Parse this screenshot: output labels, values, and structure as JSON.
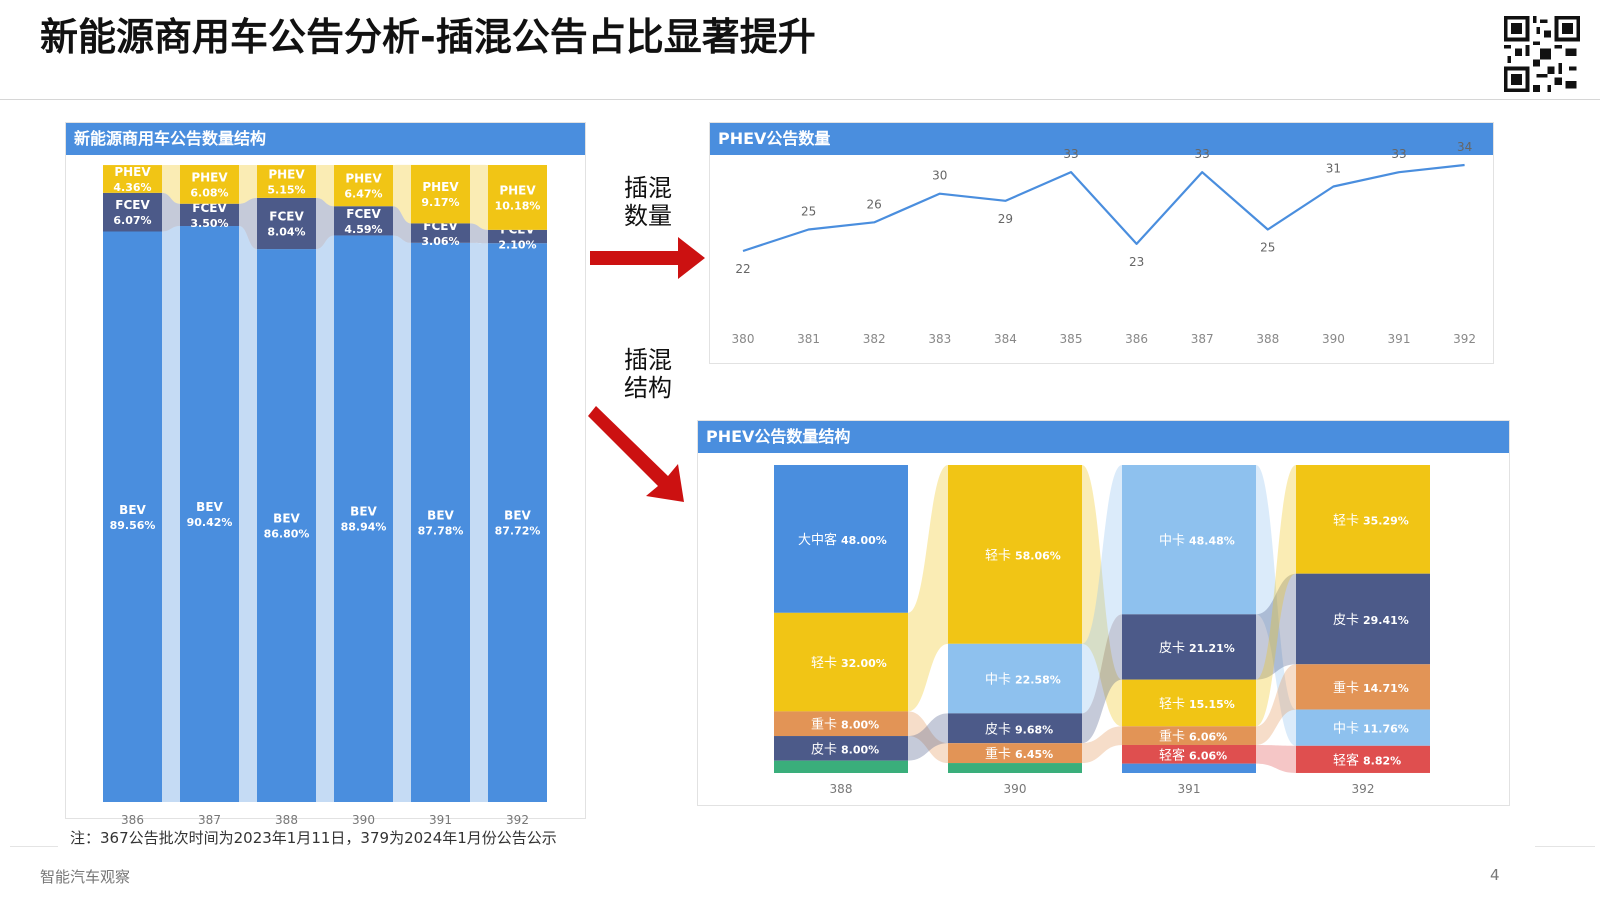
{
  "page": {
    "title": "新能源商用车公告分析-插混公告占比显著提升",
    "note": "注：367公告批次时间为2023年1月11日，379为2024年1月份公告公示",
    "footer": "智能汽车观察",
    "page_number": "4",
    "arrow_label_1": "插混\n数量",
    "arrow_label_2": "插混\n结构"
  },
  "colors": {
    "header_blue": "#4a8ede",
    "bev": "#4a8ede",
    "fcev": "#4c5a89",
    "phev": "#f1c515",
    "light_blue": "#8ec1ee",
    "orange": "#e29456",
    "red": "#df4f4f",
    "green": "#3aae7b",
    "arrow_red": "#cc1111",
    "line": "#4a8ede"
  },
  "chart_data": [
    {
      "type": "bar",
      "stacked": "100%",
      "title": "新能源商用车公告数量结构",
      "categories": [
        "386",
        "387",
        "388",
        "390",
        "391",
        "392"
      ],
      "series": [
        {
          "name": "BEV",
          "values": [
            89.56,
            90.42,
            86.8,
            88.94,
            87.78,
            87.72
          ],
          "labels": [
            "89.56%",
            "90.42%",
            "86.80%",
            "88.94%",
            "87.78%",
            "87.72%"
          ]
        },
        {
          "name": "FCEV",
          "values": [
            6.07,
            3.5,
            8.04,
            4.59,
            3.06,
            2.1
          ],
          "labels": [
            "6.07%",
            "3.50%",
            "8.04%",
            "4.59%",
            "3.06%",
            "2.10%"
          ]
        },
        {
          "name": "PHEV",
          "values": [
            4.36,
            6.08,
            5.15,
            6.47,
            9.17,
            10.18
          ],
          "labels": [
            "4.36%",
            "6.08%",
            "5.15%",
            "6.47%",
            "9.17%",
            "10.18%"
          ]
        }
      ]
    },
    {
      "type": "line",
      "title": "PHEV公告数量",
      "categories": [
        "380",
        "381",
        "382",
        "383",
        "384",
        "385",
        "386",
        "387",
        "388",
        "390",
        "391",
        "392"
      ],
      "values": [
        22,
        25,
        26,
        30,
        29,
        33,
        23,
        33,
        25,
        31,
        33,
        34
      ],
      "ylim": [
        0,
        36
      ],
      "grid": false
    },
    {
      "type": "bar",
      "stacked": "100%",
      "title": "PHEV公告数量结构",
      "categories": [
        "388",
        "390",
        "391",
        "392"
      ],
      "columns": [
        {
          "segments": [
            {
              "name": "大中客",
              "value": 48.0,
              "label": "48.00%",
              "color": "#4a8ede"
            },
            {
              "name": "轻卡",
              "value": 32.0,
              "label": "32.00%",
              "color": "#f1c515"
            },
            {
              "name": "重卡",
              "value": 8.0,
              "label": "8.00%",
              "color": "#e29456"
            },
            {
              "name": "皮卡",
              "value": 8.0,
              "label": "8.00%",
              "color": "#4c5a89"
            },
            {
              "name": "",
              "value": 4.0,
              "label": "",
              "color": "#3aae7b"
            }
          ]
        },
        {
          "segments": [
            {
              "name": "轻卡",
              "value": 58.06,
              "label": "58.06%",
              "color": "#f1c515"
            },
            {
              "name": "中卡",
              "value": 22.58,
              "label": "22.58%",
              "color": "#8ec1ee"
            },
            {
              "name": "皮卡",
              "value": 9.68,
              "label": "9.68%",
              "color": "#4c5a89"
            },
            {
              "name": "重卡",
              "value": 6.45,
              "label": "6.45%",
              "color": "#e29456"
            },
            {
              "name": "",
              "value": 3.23,
              "label": "",
              "color": "#3aae7b"
            }
          ]
        },
        {
          "segments": [
            {
              "name": "中卡",
              "value": 48.48,
              "label": "48.48%",
              "color": "#8ec1ee"
            },
            {
              "name": "皮卡",
              "value": 21.21,
              "label": "21.21%",
              "color": "#4c5a89"
            },
            {
              "name": "轻卡",
              "value": 15.15,
              "label": "15.15%",
              "color": "#f1c515"
            },
            {
              "name": "重卡",
              "value": 6.06,
              "label": "6.06%",
              "color": "#e29456"
            },
            {
              "name": "轻客",
              "value": 6.06,
              "label": "6.06%",
              "color": "#df4f4f"
            },
            {
              "name": "",
              "value": 3.04,
              "label": "",
              "color": "#4a8ede"
            }
          ]
        },
        {
          "segments": [
            {
              "name": "轻卡",
              "value": 35.29,
              "label": "35.29%",
              "color": "#f1c515"
            },
            {
              "name": "皮卡",
              "value": 29.41,
              "label": "29.41%",
              "color": "#4c5a89"
            },
            {
              "name": "重卡",
              "value": 14.71,
              "label": "14.71%",
              "color": "#e29456"
            },
            {
              "name": "中卡",
              "value": 11.76,
              "label": "11.76%",
              "color": "#8ec1ee"
            },
            {
              "name": "轻客",
              "value": 8.82,
              "label": "8.82%",
              "color": "#df4f4f"
            }
          ]
        }
      ]
    }
  ]
}
